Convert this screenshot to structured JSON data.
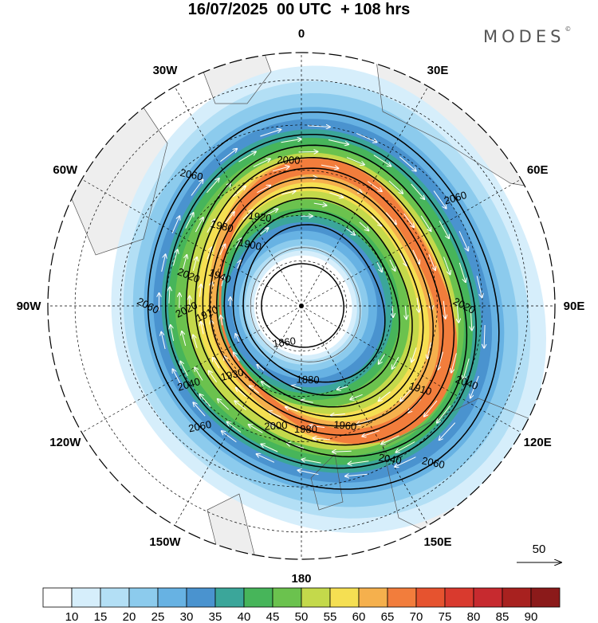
{
  "title": "16/07/2025  00 UTC  + 108 hrs",
  "brand": {
    "name": "MODES",
    "mark": "©"
  },
  "colors": {
    "land": "#eeeeee",
    "coast": "#555555",
    "contour": "#000000",
    "wind_arrow": "#ffffff",
    "grid": "#000000"
  },
  "map": {
    "projection": "polar-stereographic",
    "hemisphere": "south",
    "longitude_labels": [
      {
        "lon": 0,
        "text": "0"
      },
      {
        "lon": 30,
        "text": "30E"
      },
      {
        "lon": 60,
        "text": "60E"
      },
      {
        "lon": 90,
        "text": "90E"
      },
      {
        "lon": 120,
        "text": "120E"
      },
      {
        "lon": 150,
        "text": "150E"
      },
      {
        "lon": 180,
        "text": "180"
      },
      {
        "lon": -150,
        "text": "150W"
      },
      {
        "lon": -120,
        "text": "120W"
      },
      {
        "lon": -90,
        "text": "90W"
      },
      {
        "lon": -60,
        "text": "60W"
      },
      {
        "lon": -30,
        "text": "30W"
      }
    ],
    "latitude_circles_count": 5,
    "contour_labels": [
      {
        "value": "2060",
        "lon": -40
      },
      {
        "value": "2060",
        "lon": -90
      },
      {
        "value": "2060",
        "lon": -140
      },
      {
        "value": "2060",
        "lon": 140
      },
      {
        "value": "2060",
        "lon": 55
      },
      {
        "value": "2040",
        "lon": -125
      },
      {
        "value": "2040",
        "lon": 115
      },
      {
        "value": "2040",
        "lon": 150
      },
      {
        "value": "2020",
        "lon": 90
      },
      {
        "value": "2020",
        "lon": -75
      },
      {
        "value": "2020",
        "lon": -92
      },
      {
        "value": "2000",
        "lon": -5
      },
      {
        "value": "2000",
        "lon": -168
      },
      {
        "value": "1980",
        "lon": 178
      },
      {
        "value": "1980",
        "lon": -45
      },
      {
        "value": "1960",
        "lon": 160
      },
      {
        "value": "1940",
        "lon": -70
      },
      {
        "value": "1930",
        "lon": -135
      },
      {
        "value": "1920",
        "lon": -25
      },
      {
        "value": "1910",
        "lon": 125
      },
      {
        "value": "1900",
        "lon": -40
      },
      {
        "value": "1880",
        "lon": 175
      },
      {
        "value": "1860",
        "lon": -155
      },
      {
        "value": "1910",
        "lon": -95
      }
    ]
  },
  "chart_data": {
    "type": "heatmap",
    "field": "wind speed (shaded) with geopotential height contours and wind vectors",
    "colorbar": {
      "ticks": [
        "10",
        "15",
        "20",
        "25",
        "30",
        "35",
        "40",
        "45",
        "50",
        "55",
        "60",
        "65",
        "70",
        "75",
        "80",
        "85",
        "90"
      ],
      "colors": [
        "#ffffff",
        "#d6eefb",
        "#b3dff5",
        "#8ccbed",
        "#67b2e3",
        "#4a93cf",
        "#3ba69a",
        "#47b55a",
        "#6bc24e",
        "#c4d94b",
        "#f5df52",
        "#f5b04d",
        "#f27d3c",
        "#e6532f",
        "#d93a2e",
        "#c72a2f",
        "#a8211f",
        "#8b1a1a"
      ]
    },
    "contour_levels": [
      1860,
      1880,
      1900,
      1920,
      1940,
      1960,
      1980,
      2000,
      2020,
      2040,
      2060
    ],
    "vector_reference": {
      "value": "50"
    }
  }
}
